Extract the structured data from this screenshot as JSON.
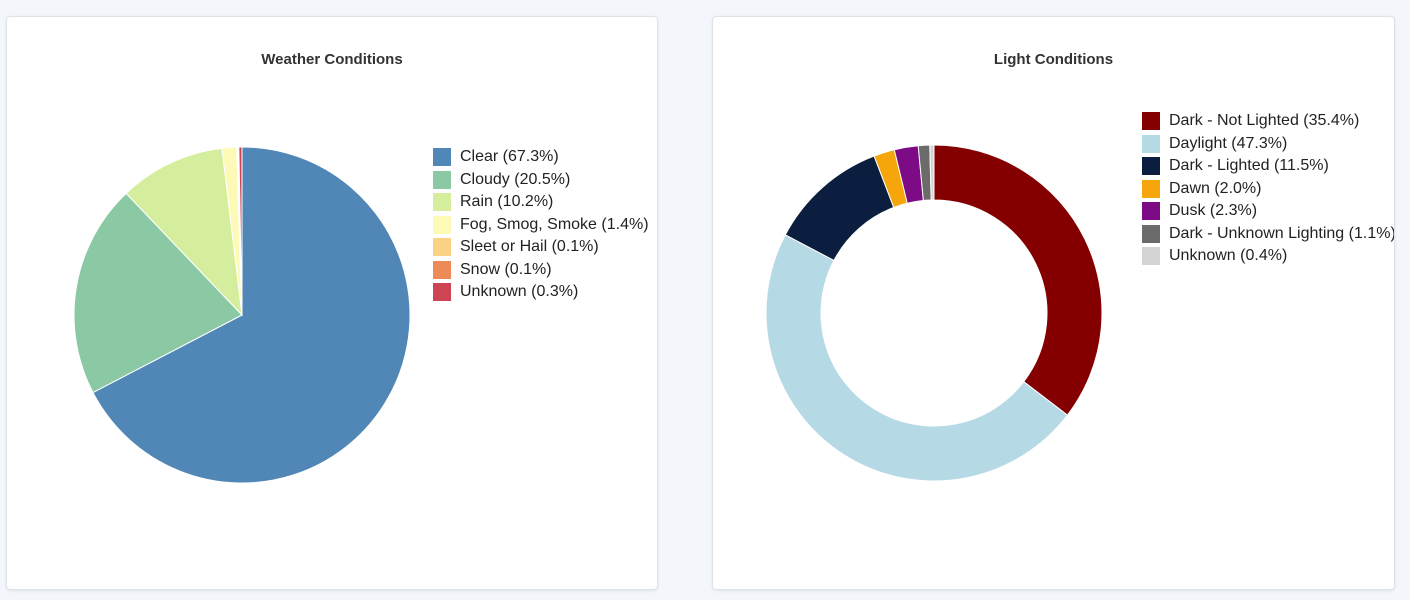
{
  "chart_data": [
    {
      "type": "pie",
      "title": "Weather Conditions",
      "legend_position": "right",
      "slices": [
        {
          "label": "Clear (67.3%)",
          "value": 67.3,
          "color": "#5187b6"
        },
        {
          "label": "Cloudy (20.5%)",
          "value": 20.5,
          "color": "#8bc9a4"
        },
        {
          "label": "Rain (10.2%)",
          "value": 10.2,
          "color": "#d5ee9d"
        },
        {
          "label": "Fog, Smog, Smoke (1.4%)",
          "value": 1.4,
          "color": "#fdfab7"
        },
        {
          "label": "Sleet or Hail (0.1%)",
          "value": 0.1,
          "color": "#f9d283"
        },
        {
          "label": "Snow (0.1%)",
          "value": 0.1,
          "color": "#ee8a56"
        },
        {
          "label": "Unknown (0.3%)",
          "value": 0.3,
          "color": "#cd4452"
        }
      ]
    },
    {
      "type": "pie",
      "donut": true,
      "title": "Light Conditions",
      "legend_position": "right",
      "slices": [
        {
          "label": "Dark - Not Lighted (35.4%)",
          "value": 35.4,
          "color": "#840000"
        },
        {
          "label": "Daylight (47.3%)",
          "value": 47.3,
          "color": "#b6d9e6"
        },
        {
          "label": "Dark - Lighted (11.5%)",
          "value": 11.5,
          "color": "#0c1e3f"
        },
        {
          "label": "Dawn (2.0%)",
          "value": 2.0,
          "color": "#f5a60a"
        },
        {
          "label": "Dusk (2.3%)",
          "value": 2.3,
          "color": "#7d0b85"
        },
        {
          "label": "Dark - Unknown Lighting (1.1%)",
          "value": 1.1,
          "color": "#6b6b6b"
        },
        {
          "label": "Unknown (0.4%)",
          "value": 0.4,
          "color": "#d4d4d4"
        }
      ]
    }
  ]
}
